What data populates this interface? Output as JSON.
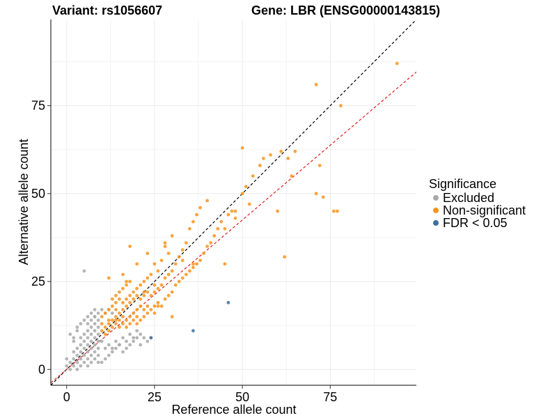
{
  "chart_data": {
    "type": "scatter",
    "title_left": "Variant: rs1056607",
    "title_right": "Gene: LBR (ENSG00000143815)",
    "xlabel": "Reference allele count",
    "ylabel": "Alternative allele count",
    "xlim": [
      -4.5,
      99.5
    ],
    "ylim": [
      -4.5,
      99.5
    ],
    "xticks": [
      0,
      25,
      50,
      75
    ],
    "yticks": [
      0,
      25,
      50,
      75
    ],
    "grid": true,
    "legend": {
      "title": "Significance",
      "placement": "right",
      "entries": [
        {
          "label": "Excluded",
          "color": "#a9a9a9"
        },
        {
          "label": "Non-significant",
          "color": "#f7941d"
        },
        {
          "label": "FDR < 0.05",
          "color": "#3f6f9f"
        }
      ]
    },
    "reference_lines": [
      {
        "name": "identity",
        "slope": 1.0,
        "intercept": 0,
        "color": "#000000",
        "style": "dashed"
      },
      {
        "name": "fit",
        "slope": 0.85,
        "intercept": 0,
        "color": "#e41a1c",
        "style": "dashed"
      }
    ],
    "series": [
      {
        "name": "Excluded",
        "color": "#a9a9a9",
        "x": [
          0,
          1,
          1,
          2,
          2,
          2,
          3,
          3,
          3,
          3,
          4,
          4,
          4,
          4,
          4,
          5,
          5,
          5,
          5,
          5,
          6,
          6,
          6,
          6,
          6,
          6,
          7,
          7,
          7,
          7,
          7,
          7,
          8,
          8,
          8,
          8,
          8,
          8,
          8,
          9,
          9,
          9,
          9,
          9,
          9,
          9,
          5,
          3,
          2,
          1,
          0,
          10,
          11,
          12,
          13,
          14,
          15,
          16,
          17,
          18,
          19,
          20,
          21,
          22,
          10,
          12,
          14,
          16,
          18,
          20,
          11,
          13,
          15,
          17,
          19,
          21,
          23,
          24,
          5,
          6,
          7,
          8,
          4,
          3,
          2,
          6,
          7,
          8,
          9,
          10,
          11,
          12,
          13
        ],
        "y": [
          1,
          0,
          2,
          1,
          3,
          5,
          0,
          2,
          4,
          6,
          1,
          3,
          5,
          7,
          9,
          2,
          4,
          6,
          8,
          10,
          1,
          3,
          5,
          7,
          9,
          11,
          2,
          4,
          6,
          8,
          10,
          12,
          3,
          5,
          7,
          9,
          11,
          13,
          15,
          2,
          4,
          6,
          8,
          10,
          12,
          14,
          28,
          12,
          8,
          10,
          3,
          2,
          3,
          4,
          5,
          6,
          7,
          5,
          6,
          7,
          8,
          9,
          10,
          9,
          8,
          7,
          8,
          9,
          10,
          11,
          6,
          6,
          7,
          8,
          9,
          7,
          8,
          9,
          14,
          15,
          16,
          17,
          13,
          11,
          9,
          13,
          14,
          15,
          16,
          17,
          16,
          17,
          16
        ]
      },
      {
        "name": "Non-significant",
        "color": "#f7941d",
        "x": [
          10,
          10,
          10,
          11,
          11,
          11,
          12,
          12,
          12,
          12,
          13,
          13,
          13,
          13,
          14,
          14,
          14,
          14,
          14,
          15,
          15,
          15,
          15,
          15,
          16,
          16,
          16,
          16,
          16,
          17,
          17,
          17,
          17,
          17,
          18,
          18,
          18,
          18,
          18,
          19,
          19,
          19,
          19,
          20,
          20,
          20,
          20,
          20,
          21,
          21,
          21,
          21,
          22,
          22,
          22,
          22,
          23,
          23,
          23,
          23,
          24,
          24,
          24,
          25,
          25,
          25,
          25,
          26,
          26,
          26,
          27,
          27,
          27,
          28,
          28,
          28,
          29,
          29,
          29,
          30,
          30,
          30,
          31,
          31,
          32,
          32,
          33,
          33,
          34,
          34,
          35,
          35,
          36,
          36,
          37,
          37,
          38,
          38,
          39,
          40,
          40,
          41,
          42,
          43,
          44,
          45,
          46,
          47,
          48,
          50,
          51,
          52,
          53,
          55,
          56,
          58,
          61,
          63,
          64,
          65,
          71,
          71,
          72,
          73,
          76,
          77,
          78,
          94,
          18,
          23,
          36,
          14,
          12,
          20,
          17,
          22,
          26,
          28,
          16,
          30,
          33,
          25,
          45,
          48,
          50,
          60,
          62
        ],
        "y": [
          11,
          13,
          15,
          10,
          12,
          16,
          11,
          13,
          17,
          14,
          12,
          14,
          18,
          20,
          13,
          15,
          17,
          19,
          21,
          12,
          14,
          16,
          20,
          22,
          13,
          15,
          17,
          19,
          23,
          12,
          14,
          18,
          20,
          24,
          13,
          15,
          19,
          21,
          25,
          14,
          16,
          20,
          22,
          13,
          15,
          17,
          21,
          23,
          14,
          18,
          20,
          24,
          15,
          17,
          21,
          25,
          16,
          18,
          22,
          26,
          17,
          21,
          27,
          16,
          18,
          22,
          30,
          19,
          23,
          28,
          18,
          24,
          31,
          20,
          26,
          35,
          21,
          27,
          33,
          22,
          28,
          38,
          24,
          30,
          25,
          32,
          26,
          34,
          27,
          36,
          28,
          40,
          29,
          42,
          30,
          44,
          31,
          46,
          33,
          35,
          48,
          36,
          38,
          40,
          42,
          40,
          44,
          45,
          43,
          50,
          52,
          47,
          55,
          58,
          60,
          61,
          62,
          60,
          55,
          62,
          81,
          50,
          58,
          49,
          45,
          45,
          75,
          87,
          35,
          33,
          30,
          14,
          26,
          30,
          25,
          22,
          18,
          36,
          27,
          15,
          31,
          24,
          30,
          45,
          63,
          45,
          32
        ]
      },
      {
        "name": "FDR < 0.05",
        "color": "#3f6f9f",
        "x": [
          46,
          36,
          24
        ],
        "y": [
          19,
          11,
          9
        ]
      }
    ]
  }
}
